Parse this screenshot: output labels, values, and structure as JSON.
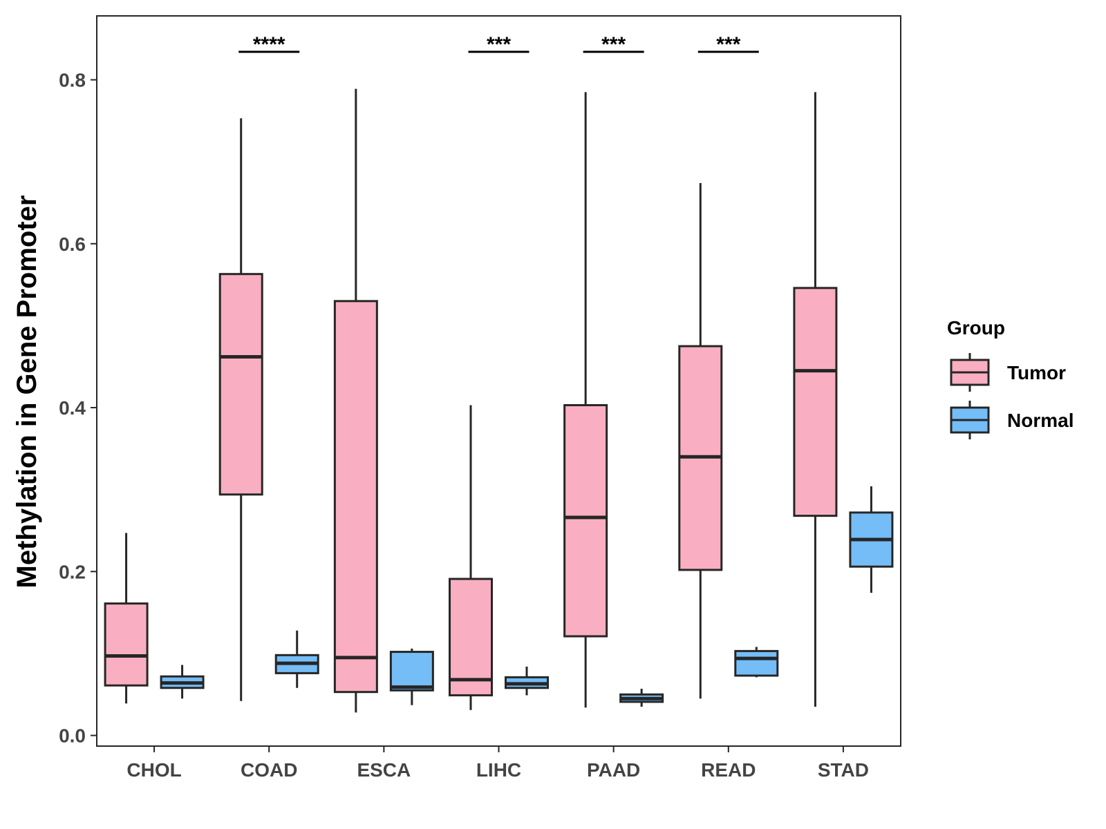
{
  "chart_data": {
    "type": "boxplot",
    "ylabel": "Methylation in Gene Promoter",
    "xlabel": "",
    "ylim": [
      -0.013,
      0.878
    ],
    "yticks": [
      0.0,
      0.2,
      0.4,
      0.6,
      0.8
    ],
    "ytick_labels": [
      "0.0",
      "0.2",
      "0.4",
      "0.6",
      "0.8"
    ],
    "categories": [
      "CHOL",
      "COAD",
      "ESCA",
      "LIHC",
      "PAAD",
      "READ",
      "STAD"
    ],
    "legend": {
      "title": "Group",
      "position": "right",
      "entries": [
        {
          "name": "Tumor",
          "color": "#F9AFC1"
        },
        {
          "name": "Normal",
          "color": "#74BDF7"
        }
      ]
    },
    "series": [
      {
        "name": "Tumor",
        "color": "#F9AFC1",
        "boxes": [
          {
            "category": "CHOL",
            "whisker_low": 0.039,
            "q1": 0.061,
            "median": 0.097,
            "q3": 0.161,
            "whisker_high": 0.247
          },
          {
            "category": "COAD",
            "whisker_low": 0.042,
            "q1": 0.294,
            "median": 0.462,
            "q3": 0.563,
            "whisker_high": 0.753
          },
          {
            "category": "ESCA",
            "whisker_low": 0.028,
            "q1": 0.053,
            "median": 0.095,
            "q3": 0.53,
            "whisker_high": 0.789
          },
          {
            "category": "LIHC",
            "whisker_low": 0.031,
            "q1": 0.049,
            "median": 0.068,
            "q3": 0.191,
            "whisker_high": 0.403
          },
          {
            "category": "PAAD",
            "whisker_low": 0.034,
            "q1": 0.121,
            "median": 0.266,
            "q3": 0.403,
            "whisker_high": 0.785
          },
          {
            "category": "READ",
            "whisker_low": 0.045,
            "q1": 0.202,
            "median": 0.34,
            "q3": 0.475,
            "whisker_high": 0.674
          },
          {
            "category": "STAD",
            "whisker_low": 0.035,
            "q1": 0.268,
            "median": 0.445,
            "q3": 0.546,
            "whisker_high": 0.785
          }
        ]
      },
      {
        "name": "Normal",
        "color": "#74BDF7",
        "boxes": [
          {
            "category": "CHOL",
            "whisker_low": 0.045,
            "q1": 0.058,
            "median": 0.064,
            "q3": 0.072,
            "whisker_high": 0.086
          },
          {
            "category": "COAD",
            "whisker_low": 0.058,
            "q1": 0.076,
            "median": 0.088,
            "q3": 0.098,
            "whisker_high": 0.128
          },
          {
            "category": "ESCA",
            "whisker_low": 0.037,
            "q1": 0.055,
            "median": 0.059,
            "q3": 0.102,
            "whisker_high": 0.106
          },
          {
            "category": "LIHC",
            "whisker_low": 0.049,
            "q1": 0.058,
            "median": 0.063,
            "q3": 0.071,
            "whisker_high": 0.084
          },
          {
            "category": "PAAD",
            "whisker_low": 0.035,
            "q1": 0.041,
            "median": 0.045,
            "q3": 0.05,
            "whisker_high": 0.057
          },
          {
            "category": "READ",
            "whisker_low": 0.071,
            "q1": 0.073,
            "median": 0.094,
            "q3": 0.103,
            "whisker_high": 0.108
          },
          {
            "category": "STAD",
            "whisker_low": 0.174,
            "q1": 0.206,
            "median": 0.239,
            "q3": 0.272,
            "whisker_high": 0.304
          }
        ]
      }
    ],
    "significance": [
      {
        "category": "COAD",
        "label": "****"
      },
      {
        "category": "LIHC",
        "label": "***"
      },
      {
        "category": "PAAD",
        "label": "***"
      },
      {
        "category": "READ",
        "label": "***"
      }
    ],
    "grid": false
  },
  "colors": {
    "tumor": "#F9AFC1",
    "normal": "#74BDF7",
    "outline": "#262626"
  }
}
